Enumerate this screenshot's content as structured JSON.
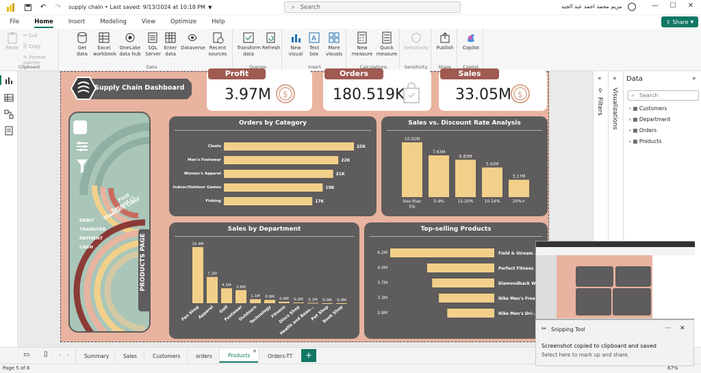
{
  "app": {
    "title": "supply chain • Last saved: 9/13/2024 at 10:18 PM",
    "search_placeholder": "Search",
    "user_name": "مريم محمد احمد عبد الجيد"
  },
  "menu": [
    "File",
    "Home",
    "Insert",
    "Modeling",
    "View",
    "Optimize",
    "Help"
  ],
  "share_label": "Share",
  "ribbon": {
    "clipboard": {
      "paste": "Paste",
      "cut": "Cut",
      "copy": "Copy",
      "format_painter": "Format painter",
      "label": "Clipboard"
    },
    "data": {
      "get_data": "Get data",
      "excel": "Excel workbook",
      "onelake": "OneLake data hub",
      "sql": "SQL Server",
      "enter": "Enter data",
      "dataverse": "Dataverse",
      "recent": "Recent sources",
      "label": "Data"
    },
    "queries": {
      "transform": "Transform data",
      "refresh": "Refresh",
      "label": "Queries"
    },
    "insert": {
      "new_visual": "New visual",
      "text_box": "Text box",
      "more_visuals": "More visuals",
      "label": "Insert"
    },
    "calculations": {
      "new_measure": "New measure",
      "quick_measure": "Quick measure",
      "label": "Calculations"
    },
    "sensitivity": {
      "btn": "Sensitivity",
      "label": "Sensitivity"
    },
    "share": {
      "publish": "Publish",
      "label": "Share"
    },
    "copilot": {
      "btn": "Copilot",
      "label": "Copilot"
    }
  },
  "panes": {
    "filters": "Filters",
    "visualizations": "Visualizations",
    "data_title": "Data",
    "data_search": "Search",
    "tables": [
      "Customers",
      "Department",
      "Orders",
      "Products"
    ]
  },
  "report": {
    "dashboard_title": "Supply Chain Dashboard",
    "kpis": [
      {
        "label": "Profit",
        "value": "3.97M"
      },
      {
        "label": "Orders",
        "value": "180.519K"
      },
      {
        "label": "Sales",
        "value": "33.05M"
      }
    ],
    "donut_labels": {
      "shipping": [
        "First",
        "Second Cl...",
        "Standard Class"
      ],
      "payment": [
        "DEBIT",
        "TRANSFER",
        "PAYMENT",
        "CASH"
      ]
    },
    "products_page_label": "PRODUCTS PAGE"
  },
  "chart_data": [
    {
      "type": "bar",
      "title": "Orders by Category",
      "orientation": "horizontal",
      "categories": [
        "Cleats",
        "Men's Footwear",
        "Women's Apparel",
        "Indoor/Outdoor Games",
        "Fishing"
      ],
      "values": [
        25,
        22,
        21,
        19,
        17
      ],
      "value_labels": [
        "25K",
        "22K",
        "21K",
        "19K",
        "17K"
      ]
    },
    {
      "type": "bar",
      "title": "Sales vs. Discount Rate Analysis",
      "categories": [
        "less than 5%",
        "5-9%",
        "15-20%",
        "10-14%",
        "20%+"
      ],
      "values": [
        10.01,
        7.63,
        6.83,
        5.42,
        3.17
      ],
      "value_labels": [
        "10.01M",
        "7.63M",
        "6.83M",
        "5.42M",
        "3.17M"
      ]
    },
    {
      "type": "bar",
      "title": "Sales by Department",
      "categories": [
        "Fan Shop",
        "Apparel",
        "Golf",
        "Footwear",
        "Outdoors",
        "Technology",
        "Fitness",
        "Discs Shop",
        "Health and Beau...",
        "Pet Shop",
        "Book Shop"
      ],
      "values": [
        15.4,
        7.2,
        4.1,
        3.6,
        1.1,
        0.9,
        0.4,
        0.2,
        0.1,
        0.0,
        0.0
      ],
      "value_labels": [
        "15.4M",
        "7.2M",
        "4.1M",
        "3.6M",
        "1.1M",
        "0.9M",
        "0.4M",
        "0.2M",
        "0.1M",
        "0.0M",
        "0.0M"
      ]
    },
    {
      "type": "bar",
      "title": "Top-selling Products",
      "orientation": "horizontal",
      "categories": [
        "Field & Stream ...",
        "Perfect Fitness ...",
        "Diamondback W...",
        "Nike Men's Free...",
        "Nike Men's Dri-..."
      ],
      "values": [
        6.2,
        4.0,
        3.7,
        3.3,
        2.8
      ],
      "value_labels": [
        "6.2M",
        "4.0M",
        "3.7M",
        "3.3M",
        "2.8M"
      ]
    }
  ],
  "pages": [
    "Summary",
    "Sales",
    "Customers",
    "orders",
    "Products",
    "Orders-TT"
  ],
  "active_page": "Products",
  "status": "Page 5 of 6",
  "zoom": "67%",
  "snip": {
    "app": "Snipping Tool",
    "message": "Screenshot copied to clipboard and saved",
    "sub": "Select here to mark up and share."
  },
  "colors": {
    "bar": "#f2d08a",
    "panel": "#5e5c5c",
    "report_bg": "#e8b39f",
    "accent": "#117865",
    "tag": "#a05a52"
  }
}
